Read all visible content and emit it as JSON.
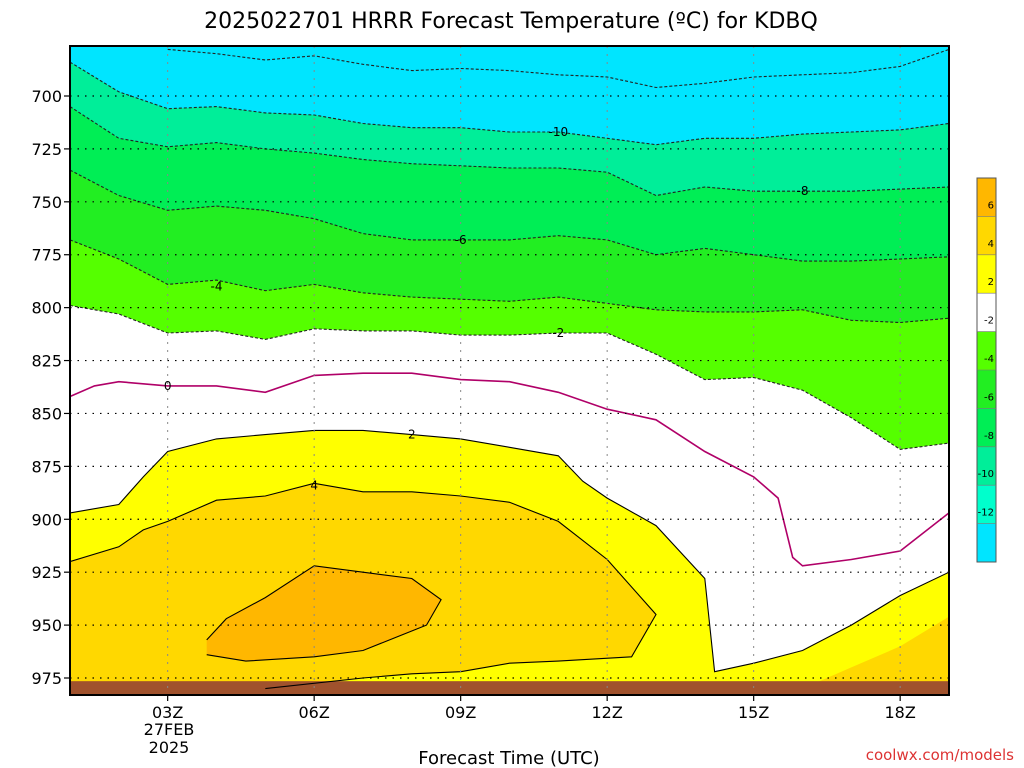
{
  "chart_data": {
    "type": "filled-contour",
    "title": "2025022701 HRRR Forecast Temperature (ºC) for KDBQ",
    "xlabel": "Forecast Time (UTC)",
    "ylabel": "",
    "x_ticks": [
      "03Z",
      "06Z",
      "09Z",
      "12Z",
      "15Z",
      "18Z"
    ],
    "x_tick_hours": [
      3,
      6,
      9,
      12,
      15,
      18
    ],
    "x_date_line1": "27FEB",
    "x_date_line2": "2025",
    "xlim_hours": [
      1,
      19
    ],
    "y_ticks": [
      700,
      725,
      750,
      775,
      800,
      825,
      850,
      875,
      900,
      925,
      950,
      975
    ],
    "ylim_hpa": [
      678,
      985
    ],
    "y_inverted": true,
    "grid": true,
    "credit": "coolwx.com/models",
    "colorbar": {
      "placement": "right",
      "labels": [
        "6",
        "4",
        "2",
        "-2",
        "-4",
        "-6",
        "-8",
        "-10",
        "-12"
      ],
      "bands": [
        {
          "lo": 6,
          "hi": 8,
          "color": "#ffb700"
        },
        {
          "lo": 4,
          "hi": 6,
          "color": "#ffd800"
        },
        {
          "lo": 2,
          "hi": 4,
          "color": "#ffff00"
        },
        {
          "lo": -2,
          "hi": 2,
          "color": "#ffffff"
        },
        {
          "lo": -4,
          "hi": -2,
          "color": "#55ff00"
        },
        {
          "lo": -6,
          "hi": -4,
          "color": "#22ee22"
        },
        {
          "lo": -8,
          "hi": -6,
          "color": "#00ee55"
        },
        {
          "lo": -10,
          "hi": -8,
          "color": "#00ee99"
        },
        {
          "lo": -12,
          "hi": -10,
          "color": "#00ffcc"
        },
        {
          "lo": -14,
          "hi": -12,
          "color": "#00e5ff"
        }
      ]
    },
    "ground_color": "#a0522d",
    "contours": [
      {
        "level": -12,
        "style": "dashed",
        "color": "#222222",
        "label": "",
        "points": [
          [
            3,
            678
          ],
          [
            4,
            680
          ],
          [
            5,
            683
          ],
          [
            6,
            681
          ],
          [
            7,
            685
          ],
          [
            8,
            688
          ],
          [
            9,
            687
          ],
          [
            10,
            688
          ],
          [
            11,
            690
          ],
          [
            12,
            691
          ],
          [
            13,
            696
          ],
          [
            14,
            694
          ],
          [
            15,
            691
          ],
          [
            16,
            690
          ],
          [
            17,
            689
          ],
          [
            18,
            686
          ],
          [
            19,
            678
          ]
        ]
      },
      {
        "level": -10,
        "style": "dashed",
        "color": "#222222",
        "label": "-10",
        "label_at": [
          11,
          717
        ],
        "points": [
          [
            1,
            684
          ],
          [
            2,
            698
          ],
          [
            3,
            706
          ],
          [
            4,
            705
          ],
          [
            5,
            708
          ],
          [
            6,
            709
          ],
          [
            7,
            713
          ],
          [
            8,
            715
          ],
          [
            9,
            715
          ],
          [
            10,
            717
          ],
          [
            11,
            717
          ],
          [
            12,
            720
          ],
          [
            13,
            723
          ],
          [
            14,
            720
          ],
          [
            15,
            720
          ],
          [
            16,
            718
          ],
          [
            17,
            717
          ],
          [
            18,
            716
          ],
          [
            19,
            713
          ]
        ]
      },
      {
        "level": -8,
        "style": "dashed",
        "color": "#222222",
        "label": "-8",
        "label_at": [
          16,
          745
        ],
        "points": [
          [
            1,
            705
          ],
          [
            2,
            720
          ],
          [
            3,
            724
          ],
          [
            4,
            722
          ],
          [
            5,
            725
          ],
          [
            6,
            727
          ],
          [
            7,
            730
          ],
          [
            8,
            732
          ],
          [
            9,
            733
          ],
          [
            10,
            734
          ],
          [
            11,
            734
          ],
          [
            12,
            736
          ],
          [
            13,
            747
          ],
          [
            14,
            743
          ],
          [
            15,
            745
          ],
          [
            16,
            745
          ],
          [
            17,
            745
          ],
          [
            18,
            744
          ],
          [
            19,
            743
          ]
        ]
      },
      {
        "level": -6,
        "style": "dashed",
        "color": "#222222",
        "label": "-6",
        "label_at": [
          9,
          768
        ],
        "points": [
          [
            1,
            735
          ],
          [
            2,
            747
          ],
          [
            3,
            754
          ],
          [
            4,
            752
          ],
          [
            5,
            754
          ],
          [
            6,
            758
          ],
          [
            7,
            765
          ],
          [
            8,
            768
          ],
          [
            9,
            768
          ],
          [
            10,
            768
          ],
          [
            11,
            766
          ],
          [
            12,
            768
          ],
          [
            13,
            775
          ],
          [
            14,
            772
          ],
          [
            15,
            775
          ],
          [
            16,
            778
          ],
          [
            17,
            778
          ],
          [
            18,
            777
          ],
          [
            19,
            776
          ]
        ]
      },
      {
        "level": -4,
        "style": "dashed",
        "color": "#222222",
        "label": "-4",
        "label_at": [
          4,
          790
        ],
        "points": [
          [
            1,
            768
          ],
          [
            2,
            777
          ],
          [
            3,
            789
          ],
          [
            4,
            787
          ],
          [
            5,
            792
          ],
          [
            6,
            789
          ],
          [
            7,
            793
          ],
          [
            8,
            795
          ],
          [
            9,
            796
          ],
          [
            10,
            797
          ],
          [
            11,
            795
          ],
          [
            12,
            798
          ],
          [
            13,
            801
          ],
          [
            14,
            802
          ],
          [
            15,
            802
          ],
          [
            16,
            801
          ],
          [
            17,
            806
          ],
          [
            18,
            807
          ],
          [
            19,
            805
          ]
        ]
      },
      {
        "level": -2,
        "style": "dashed",
        "color": "#222222",
        "label": "-2",
        "label_at": [
          11,
          812
        ],
        "points": [
          [
            1,
            799
          ],
          [
            2,
            803
          ],
          [
            3,
            812
          ],
          [
            4,
            811
          ],
          [
            5,
            815
          ],
          [
            6,
            810
          ],
          [
            7,
            811
          ],
          [
            8,
            811
          ],
          [
            9,
            813
          ],
          [
            10,
            813
          ],
          [
            11,
            812
          ],
          [
            12,
            812
          ],
          [
            13,
            822
          ],
          [
            14,
            834
          ],
          [
            15,
            833
          ],
          [
            16,
            839
          ],
          [
            17,
            852
          ],
          [
            18,
            867
          ],
          [
            19,
            864
          ]
        ]
      },
      {
        "level": 0,
        "style": "solid",
        "color": "#b00068",
        "label": "0",
        "label_at": [
          3,
          837
        ],
        "points": [
          [
            1,
            842
          ],
          [
            1.5,
            837
          ],
          [
            2,
            835
          ],
          [
            3,
            837
          ],
          [
            4,
            837
          ],
          [
            5,
            840
          ],
          [
            6,
            832
          ],
          [
            7,
            831
          ],
          [
            8,
            831
          ],
          [
            9,
            834
          ],
          [
            10,
            835
          ],
          [
            11,
            840
          ],
          [
            12,
            848
          ],
          [
            13,
            853
          ],
          [
            14,
            868
          ],
          [
            15,
            880
          ],
          [
            15.5,
            890
          ],
          [
            15.8,
            918
          ],
          [
            16,
            922
          ],
          [
            17,
            919
          ],
          [
            18,
            915
          ],
          [
            19,
            897
          ]
        ]
      },
      {
        "level": 2,
        "style": "solid",
        "color": "#000000",
        "label": "2",
        "label_at": [
          8,
          860
        ],
        "points": [
          [
            1,
            897
          ],
          [
            2,
            893
          ],
          [
            2.5,
            880
          ],
          [
            3,
            868
          ],
          [
            4,
            862
          ],
          [
            5,
            860
          ],
          [
            6,
            858
          ],
          [
            7,
            858
          ],
          [
            8,
            860
          ],
          [
            9,
            862
          ],
          [
            10,
            866
          ],
          [
            11,
            870
          ],
          [
            11.5,
            882
          ],
          [
            12,
            890
          ],
          [
            13,
            903
          ],
          [
            14,
            928
          ],
          [
            14.2,
            972
          ],
          [
            15,
            968
          ],
          [
            16,
            962
          ],
          [
            17,
            950
          ],
          [
            18,
            936
          ],
          [
            19,
            925
          ]
        ]
      },
      {
        "level": 4,
        "style": "solid",
        "color": "#000000",
        "label": "4",
        "label_at": [
          6,
          884
        ],
        "points": [
          [
            1,
            920
          ],
          [
            2,
            913
          ],
          [
            2.5,
            905
          ],
          [
            3,
            901
          ],
          [
            4,
            891
          ],
          [
            5,
            889
          ],
          [
            6,
            883
          ],
          [
            7,
            887
          ],
          [
            8,
            887
          ],
          [
            9,
            889
          ],
          [
            10,
            892
          ],
          [
            11,
            901
          ],
          [
            12,
            919
          ],
          [
            13,
            945
          ],
          [
            12.5,
            965
          ],
          [
            11,
            967
          ],
          [
            10,
            968
          ],
          [
            9,
            972
          ],
          [
            8,
            973
          ],
          [
            7,
            975
          ],
          [
            5,
            980
          ]
        ]
      },
      {
        "level": 6,
        "style": "solid",
        "color": "#000000",
        "label": "",
        "points": [
          [
            3.8,
            957
          ],
          [
            4.2,
            947
          ],
          [
            5,
            937
          ],
          [
            6,
            922
          ],
          [
            7,
            925
          ],
          [
            8,
            928
          ],
          [
            8.6,
            938
          ],
          [
            8.3,
            950
          ],
          [
            7,
            962
          ],
          [
            6,
            965
          ],
          [
            4.6,
            967
          ],
          [
            3.8,
            964
          ]
        ]
      }
    ],
    "fills": [
      {
        "color": "#ffb700",
        "points": [
          [
            3.8,
            957
          ],
          [
            4.2,
            947
          ],
          [
            5,
            937
          ],
          [
            6,
            922
          ],
          [
            7,
            925
          ],
          [
            8,
            928
          ],
          [
            8.6,
            938
          ],
          [
            8.3,
            950
          ],
          [
            7,
            962
          ],
          [
            6,
            965
          ],
          [
            4.6,
            967
          ],
          [
            3.8,
            964
          ]
        ]
      },
      {
        "color": "#ffb700",
        "points": [
          [
            16,
            985
          ],
          [
            17,
            980
          ],
          [
            18,
            975
          ],
          [
            19,
            970
          ],
          [
            19,
            985
          ]
        ]
      },
      {
        "color": "#ffd800",
        "points": [
          [
            16,
            980
          ],
          [
            17,
            970
          ],
          [
            18,
            960
          ],
          [
            19,
            946
          ],
          [
            19,
            985
          ],
          [
            16,
            985
          ]
        ]
      }
    ]
  }
}
